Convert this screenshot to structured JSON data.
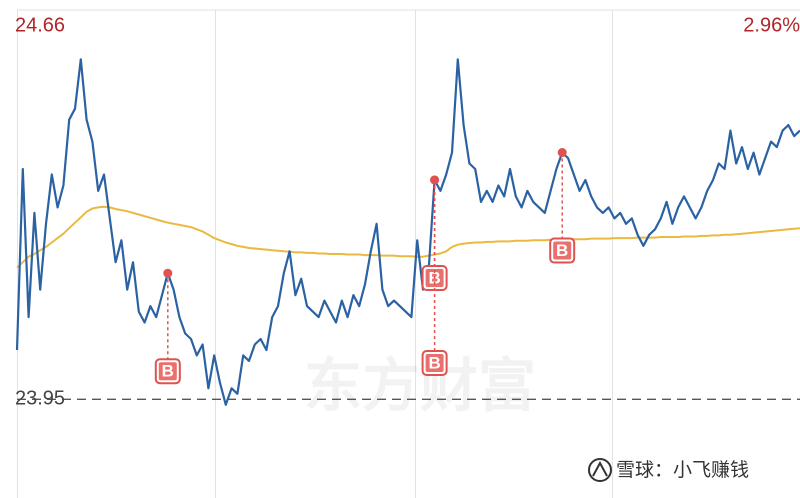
{
  "chart_data": {
    "type": "line",
    "series": [
      {
        "color": "#2b62a3",
        "values": [
          24.04,
          24.37,
          24.1,
          24.29,
          24.15,
          24.27,
          24.36,
          24.3,
          24.34,
          24.46,
          24.48,
          24.57,
          24.46,
          24.42,
          24.33,
          24.36,
          24.28,
          24.2,
          24.24,
          24.15,
          24.2,
          24.11,
          24.09,
          24.12,
          24.1,
          24.14,
          24.18,
          24.15,
          24.1,
          24.07,
          24.06,
          24.03,
          24.05,
          23.97,
          24.03,
          23.98,
          23.94,
          23.97,
          23.96,
          24.03,
          24.02,
          24.05,
          24.06,
          24.04,
          24.1,
          24.12,
          24.18,
          24.22,
          24.14,
          24.17,
          24.12,
          24.11,
          24.1,
          24.13,
          24.11,
          24.09,
          24.13,
          24.1,
          24.14,
          24.12,
          24.16,
          24.22,
          24.27,
          24.15,
          24.12,
          24.13,
          24.12,
          24.11,
          24.1,
          24.24,
          24.15,
          24.19,
          24.35,
          24.33,
          24.36,
          24.4,
          24.57,
          24.45,
          24.38,
          24.37,
          24.31,
          24.33,
          24.31,
          24.34,
          24.32,
          24.37,
          24.32,
          24.3,
          24.33,
          24.31,
          24.3,
          24.29,
          24.33,
          24.37,
          24.4,
          24.39,
          24.36,
          24.33,
          24.35,
          24.32,
          24.3,
          24.29,
          24.3,
          24.28,
          24.29,
          24.27,
          24.28,
          24.25,
          24.23,
          24.25,
          24.26,
          24.28,
          24.31,
          24.27,
          24.3,
          24.32,
          24.3,
          24.28,
          24.3,
          24.33,
          24.35,
          24.38,
          24.37,
          24.44,
          24.38,
          24.41,
          24.37,
          24.4,
          24.36,
          24.39,
          24.42,
          24.41,
          24.44,
          24.45,
          24.43,
          24.44
        ]
      },
      {
        "color": "#e9b940",
        "values": [
          24.19,
          24.2,
          24.21,
          24.215,
          24.222,
          24.228,
          24.236,
          24.244,
          24.252,
          24.262,
          24.272,
          24.282,
          24.292,
          24.298,
          24.3,
          24.301,
          24.3,
          24.297,
          24.295,
          24.293,
          24.29,
          24.287,
          24.284,
          24.281,
          24.278,
          24.275,
          24.272,
          24.27,
          24.268,
          24.266,
          24.264,
          24.26,
          24.256,
          24.25,
          24.244,
          24.24,
          24.236,
          24.233,
          24.23,
          24.228,
          24.226,
          24.225,
          24.224,
          24.223,
          24.222,
          24.221,
          24.22,
          24.219,
          24.218,
          24.218,
          24.217,
          24.217,
          24.216,
          24.216,
          24.215,
          24.215,
          24.215,
          24.214,
          24.214,
          24.214,
          24.213,
          24.213,
          24.213,
          24.212,
          24.212,
          24.212,
          24.211,
          24.211,
          24.211,
          24.21,
          24.21,
          24.212,
          24.214,
          24.216,
          24.22,
          24.228,
          24.232,
          24.234,
          24.235,
          24.236,
          24.236,
          24.237,
          24.237,
          24.238,
          24.238,
          24.238,
          24.239,
          24.239,
          24.239,
          24.24,
          24.24,
          24.24,
          24.241,
          24.241,
          24.241,
          24.242,
          24.242,
          24.242,
          24.242,
          24.243,
          24.243,
          24.243,
          24.243,
          24.244,
          24.244,
          24.244,
          24.244,
          24.245,
          24.245,
          24.245,
          24.245,
          24.246,
          24.246,
          24.246,
          24.246,
          24.247,
          24.247,
          24.247,
          24.248,
          24.248,
          24.249,
          24.249,
          24.25,
          24.25,
          24.251,
          24.252,
          24.253,
          24.254,
          24.255,
          24.256,
          24.257,
          24.258,
          24.259,
          24.26,
          24.261,
          24.262
        ]
      }
    ],
    "ylim": [
      23.77,
      24.66
    ],
    "yticks": [
      24.66
    ],
    "y2lim": [
      -0.75,
      2.96
    ],
    "y2ticks": [
      {
        "value": 2.96,
        "label": "2.96%"
      }
    ],
    "reference_line": 23.95,
    "markers": [
      {
        "label": "B",
        "index": 26
      },
      {
        "label": "B",
        "index": 72
      },
      {
        "label": "B",
        "index": 72
      },
      {
        "label": "B",
        "index": 94
      }
    ],
    "watermark": "东方财富",
    "credit": "雪球：小飞赚钱"
  }
}
